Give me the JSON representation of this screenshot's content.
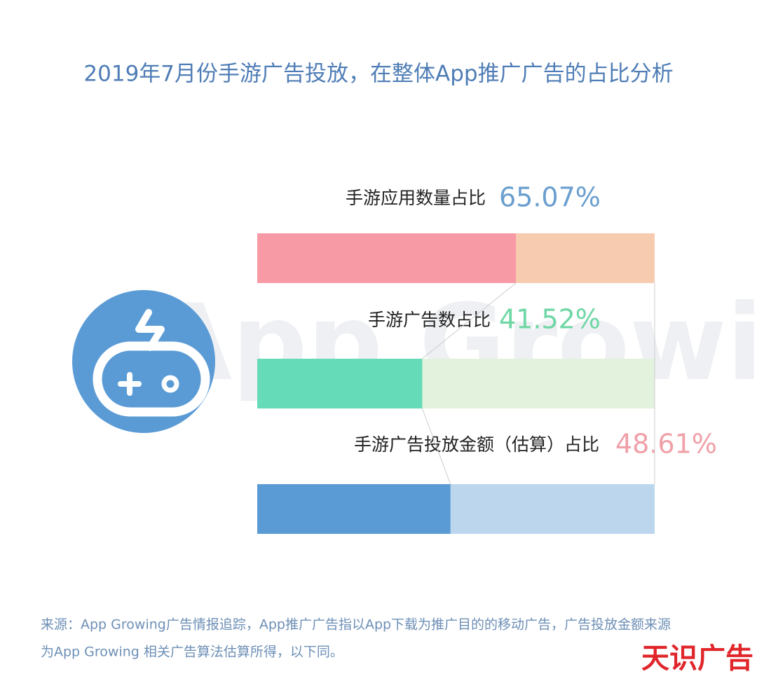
{
  "chart_data": {
    "type": "bar",
    "title": "2019年7月份手游广告投放，在整体App推广广告的占比分析",
    "categories": [
      "手游应用数量占比",
      "手游广告数占比",
      "手游广告投放金额（估算）占比"
    ],
    "values": [
      65.07,
      41.52,
      48.61
    ],
    "value_labels": [
      "65.07%",
      "41.52%",
      "48.61%"
    ],
    "colors": [
      "#f79aa5",
      "#66dbb8",
      "#5b9bd5"
    ],
    "track_colors": [
      "#f7cbb0",
      "#e2f2dc",
      "#bcd6ee"
    ],
    "label_colors": [
      "#6a9fcf",
      "#6fd7a5",
      "#f0a0a8"
    ],
    "xlim": [
      0,
      100
    ]
  },
  "watermark": "App Growing",
  "source_note": [
    "来源：App Growing广告情报追踪，App推广广告指以App下载为推广目的的移动广告，广告投放金额来源",
    "为App Growing 相关广告算法估算所得，以下同。"
  ],
  "logo": "天识广告"
}
